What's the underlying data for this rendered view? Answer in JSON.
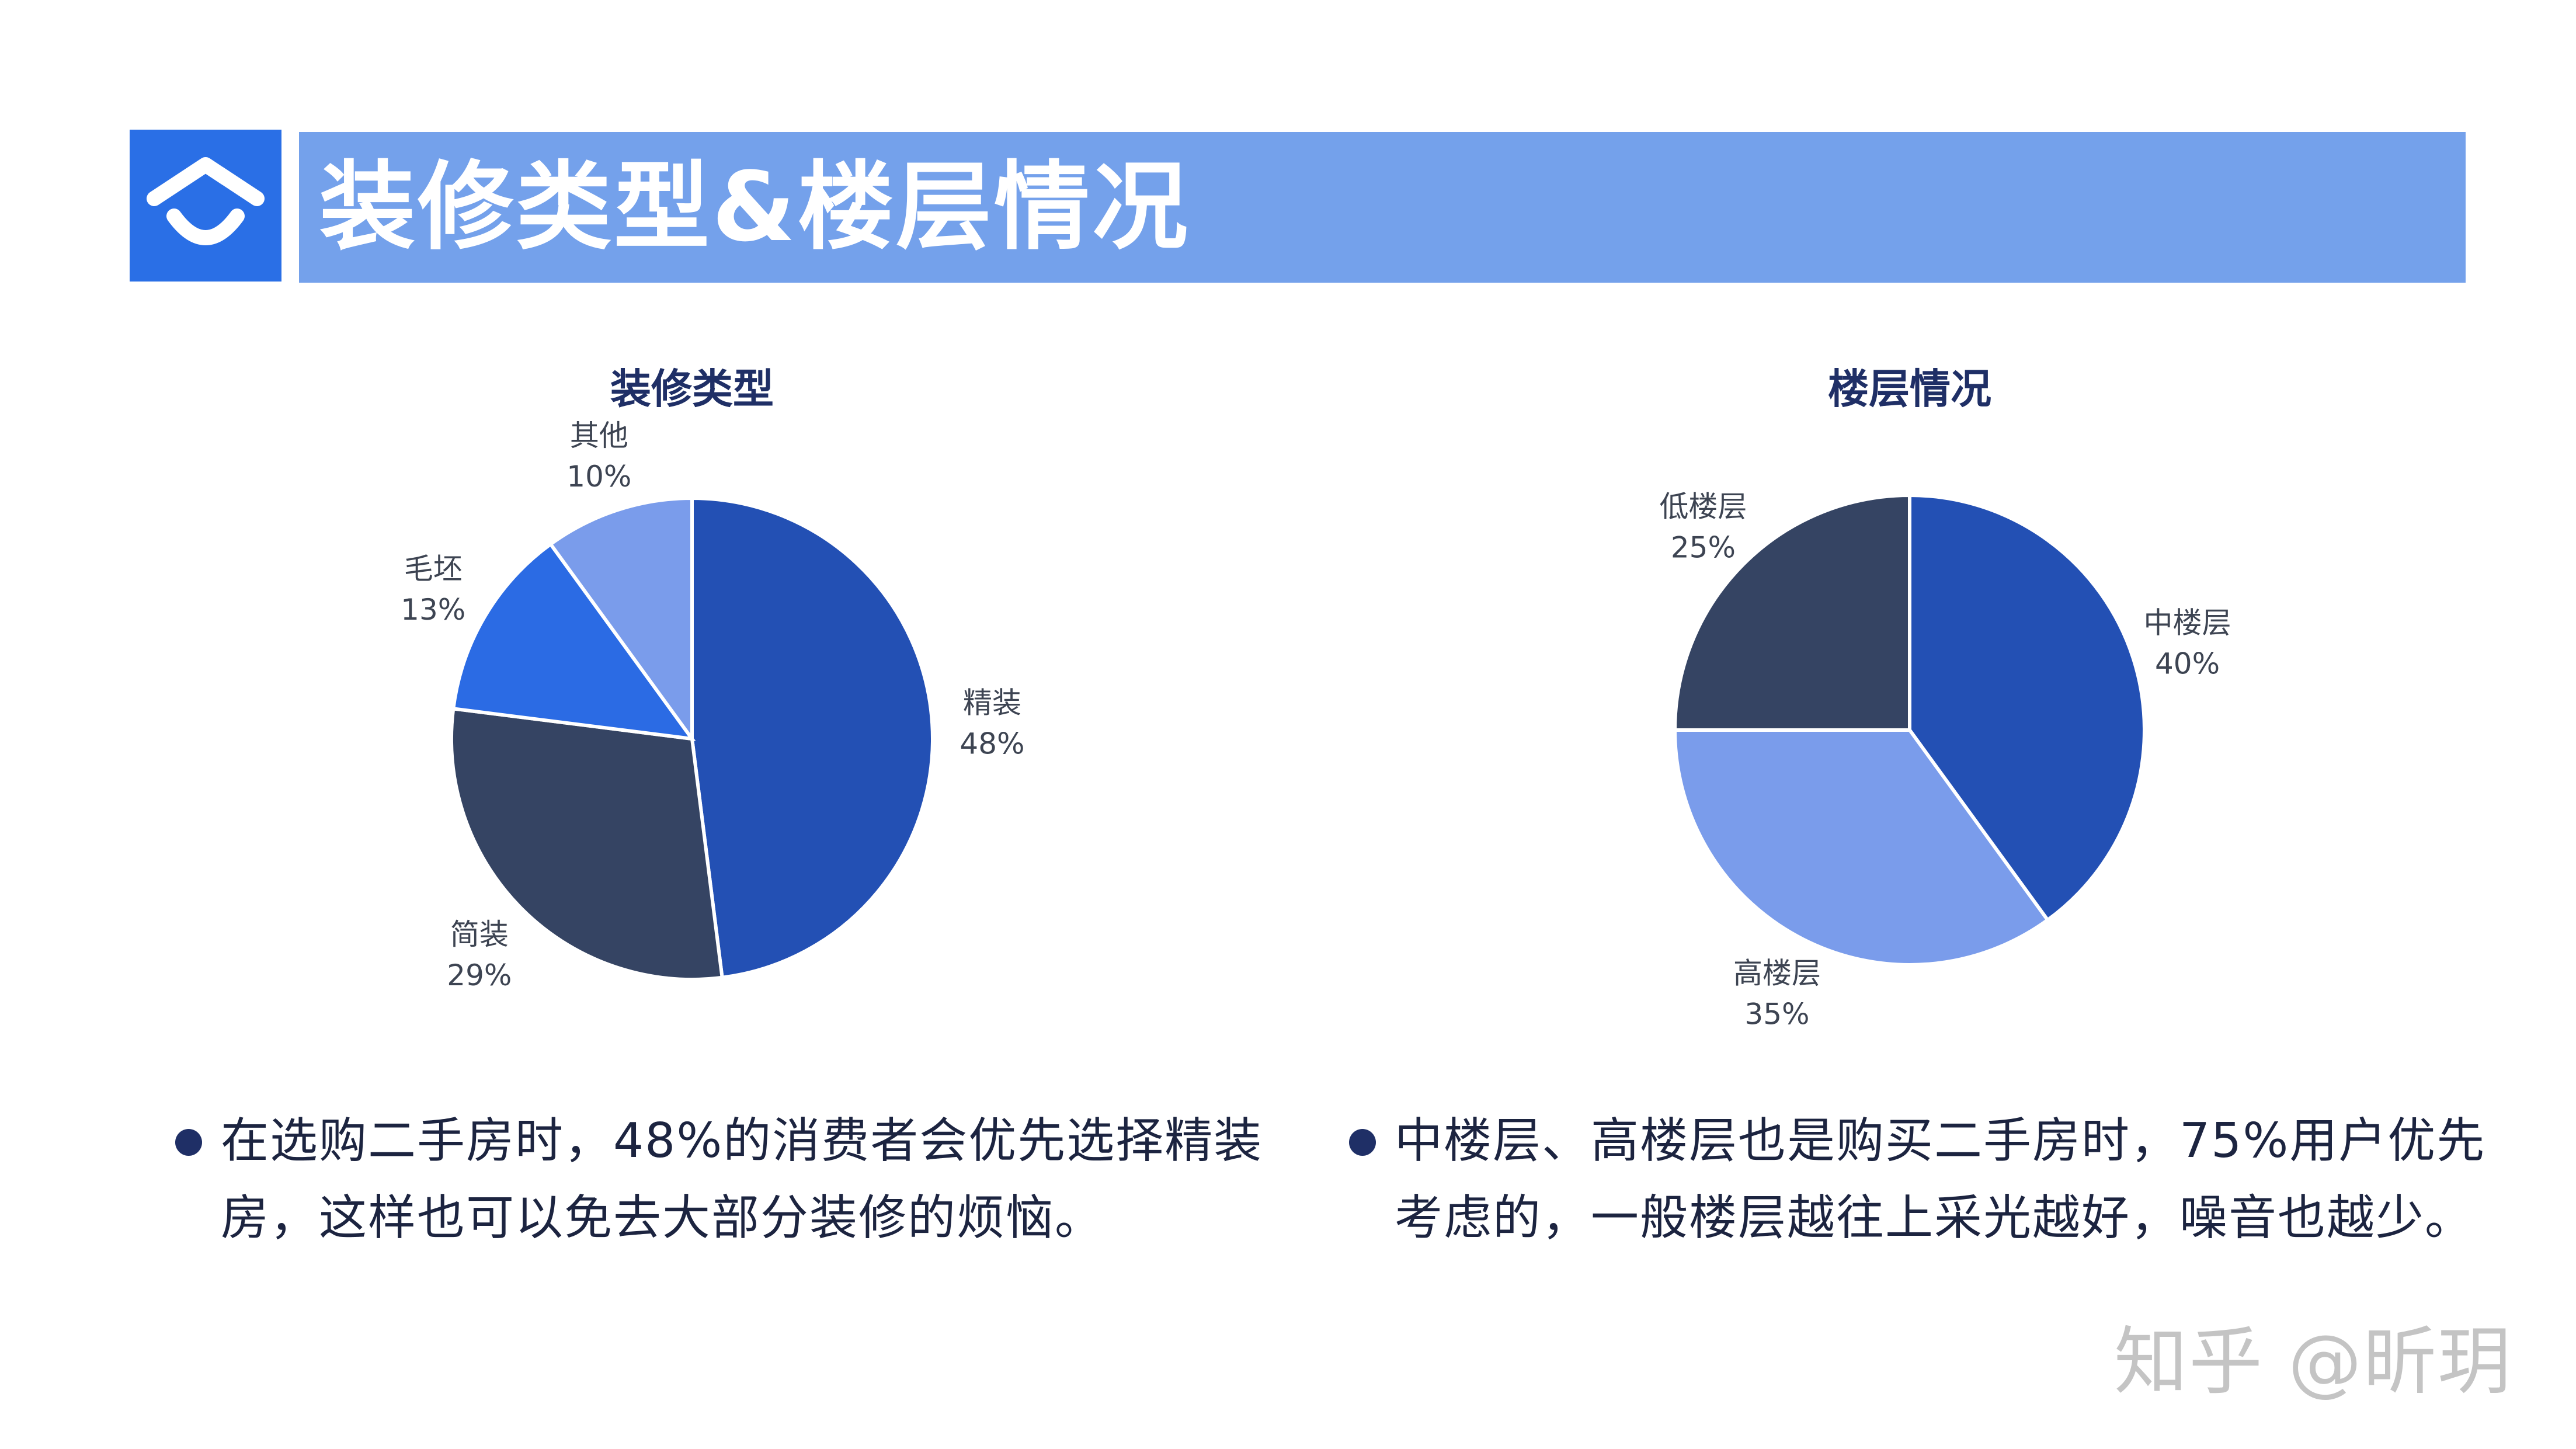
{
  "header": {
    "title": "装修类型&楼层情况"
  },
  "colors": {
    "accent": "#2a6fe6",
    "header_bar": "#74a1eb",
    "navy": "#1f2f66"
  },
  "chart_data": [
    {
      "type": "pie",
      "title": "装修类型",
      "slices": [
        {
          "label": "精装",
          "value": 48,
          "display": "48%",
          "color": "#2350b4"
        },
        {
          "label": "简装",
          "value": 29,
          "display": "29%",
          "color": "#354463"
        },
        {
          "label": "毛坯",
          "value": 13,
          "display": "13%",
          "color": "#2b6be4"
        },
        {
          "label": "其他",
          "value": 10,
          "display": "10%",
          "color": "#7a9ceb"
        }
      ]
    },
    {
      "type": "pie",
      "title": "楼层情况",
      "slices": [
        {
          "label": "中楼层",
          "value": 40,
          "display": "40%",
          "color": "#2350b4"
        },
        {
          "label": "高楼层",
          "value": 35,
          "display": "35%",
          "color": "#7a9ceb"
        },
        {
          "label": "低楼层",
          "value": 25,
          "display": "25%",
          "color": "#354463"
        }
      ]
    }
  ],
  "bullets": {
    "left": "在选购二手房时，48%的消费者会优先选择精装房，这样也可以免去大部分装修的烦恼。",
    "right": "中楼层、高楼层也是购买二手房时，75%用户优先考虑的，一般楼层越往上采光越好，噪音也越少。"
  },
  "watermark": "知乎 @昕玥"
}
